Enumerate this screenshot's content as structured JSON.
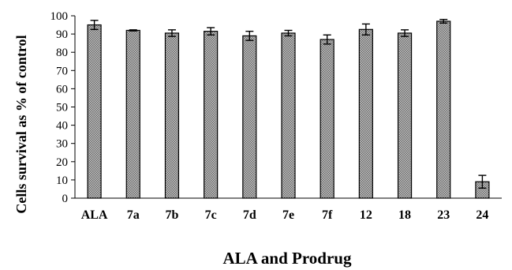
{
  "chart_data": {
    "type": "bar",
    "categories": [
      "ALA",
      "7a",
      "7b",
      "7c",
      "7d",
      "7e",
      "7f",
      "12",
      "18",
      "23",
      "24"
    ],
    "series": [
      {
        "values": [
          95,
          92,
          90.5,
          91.5,
          89,
          90.5,
          87,
          92.5,
          90.5,
          97,
          9
        ],
        "errors": [
          2.5,
          0.3,
          1.8,
          2,
          2.5,
          1.5,
          2.5,
          3,
          1.8,
          1,
          3.5
        ]
      }
    ],
    "title": "",
    "xlabel": "ALA and Prodrug",
    "ylabel": "Cells survival as % of control",
    "ylim": [
      0,
      100
    ],
    "yticks": [
      0,
      10,
      20,
      30,
      40,
      50,
      60,
      70,
      80,
      90,
      100
    ],
    "grid": false,
    "legend": "none",
    "bar_fill": "#a8a8a8",
    "bar_stroke": "#000000"
  }
}
